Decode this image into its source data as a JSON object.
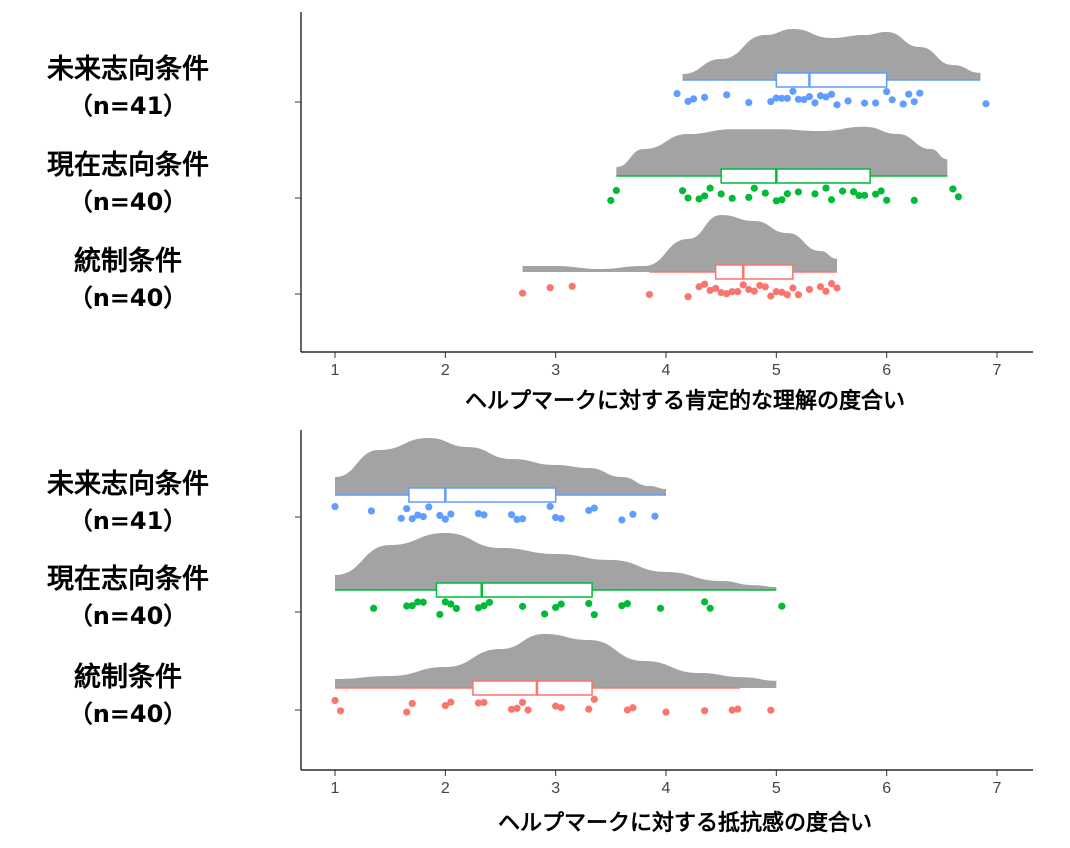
{
  "chart_data": [
    {
      "type": "raincloud",
      "xlabel": "ヘルプマークに対する肯定的な理解の度合い",
      "xlim": [
        0.7,
        7.3
      ],
      "xticks": [
        1,
        2,
        3,
        4,
        5,
        6,
        7
      ],
      "tick_labels": [
        "1",
        "2",
        "3",
        "4",
        "5",
        "6",
        "7"
      ],
      "groups": [
        {
          "label": "未来志向条件",
          "n_label": "（n=41）",
          "color": "#619CFF",
          "box": {
            "q1": 5.0,
            "median": 5.3,
            "q3": 6.0,
            "whisker_low": 4.15,
            "whisker_high": 6.85
          },
          "density": {
            "range": [
              4.15,
              6.85
            ],
            "x": [
              4.15,
              4.5,
              4.9,
              5.15,
              5.5,
              5.8,
              6.0,
              6.3,
              6.6,
              6.85
            ],
            "y": [
              0.1,
              0.35,
              0.75,
              0.85,
              0.7,
              0.75,
              0.8,
              0.55,
              0.25,
              0.12
            ]
          },
          "points": [
            4.1,
            4.2,
            4.25,
            4.35,
            4.55,
            4.75,
            4.95,
            5.0,
            5.05,
            5.1,
            5.15,
            5.2,
            5.25,
            5.3,
            5.35,
            5.4,
            5.45,
            5.5,
            5.55,
            5.65,
            5.8,
            5.9,
            6.0,
            6.05,
            6.15,
            6.2,
            6.25,
            6.3,
            6.9
          ]
        },
        {
          "label": "現在志向条件",
          "n_label": "（n=40）",
          "color": "#00BA38",
          "box": {
            "q1": 4.5,
            "median": 5.0,
            "q3": 5.85,
            "whisker_low": 3.55,
            "whisker_high": 6.55
          },
          "density": {
            "range": [
              3.55,
              6.55
            ],
            "x": [
              3.55,
              3.8,
              4.2,
              4.6,
              5.0,
              5.4,
              5.8,
              6.1,
              6.4,
              6.55
            ],
            "y": [
              0.15,
              0.45,
              0.7,
              0.78,
              0.78,
              0.75,
              0.82,
              0.7,
              0.45,
              0.28
            ]
          },
          "points": [
            3.5,
            3.55,
            4.15,
            4.2,
            4.3,
            4.35,
            4.4,
            4.5,
            4.6,
            4.75,
            4.8,
            4.9,
            5.0,
            5.05,
            5.1,
            5.2,
            5.35,
            5.45,
            5.5,
            5.6,
            5.7,
            5.75,
            5.8,
            5.9,
            5.95,
            6.0,
            6.25,
            6.6,
            6.65
          ]
        },
        {
          "label": "統制条件",
          "n_label": "（n=40）",
          "color": "#F8766D",
          "box": {
            "q1": 4.45,
            "median": 4.7,
            "q3": 5.15,
            "whisker_low": 3.85,
            "whisker_high": 5.55
          },
          "density": {
            "range": [
              2.7,
              5.55
            ],
            "x": [
              2.7,
              3.0,
              3.4,
              3.8,
              4.2,
              4.5,
              4.8,
              5.1,
              5.4,
              5.55
            ],
            "y": [
              0.1,
              0.1,
              0.05,
              0.1,
              0.55,
              0.95,
              0.85,
              0.65,
              0.35,
              0.22
            ]
          },
          "points": [
            2.7,
            2.95,
            3.15,
            3.85,
            4.2,
            4.3,
            4.35,
            4.4,
            4.45,
            4.5,
            4.55,
            4.6,
            4.65,
            4.7,
            4.75,
            4.8,
            4.85,
            4.9,
            4.95,
            5.0,
            5.05,
            5.1,
            5.15,
            5.2,
            5.3,
            5.4,
            5.45,
            5.5,
            5.55
          ]
        }
      ]
    },
    {
      "type": "raincloud",
      "xlabel": "ヘルプマークに対する抵抗感の度合い",
      "xlim": [
        0.7,
        7.3
      ],
      "xticks": [
        1,
        2,
        3,
        4,
        5,
        6,
        7
      ],
      "tick_labels": [
        "1",
        "2",
        "3",
        "4",
        "5",
        "6",
        "7"
      ],
      "groups": [
        {
          "label": "未来志向条件",
          "n_label": "（n=41）",
          "color": "#619CFF",
          "box": {
            "q1": 1.67,
            "median": 2.0,
            "q3": 3.0,
            "whisker_low": 1.0,
            "whisker_high": 4.0
          },
          "density": {
            "range": [
              1.0,
              4.0
            ],
            "x": [
              1.0,
              1.4,
              1.85,
              2.2,
              2.6,
              3.0,
              3.3,
              3.6,
              3.85,
              4.0
            ],
            "y": [
              0.3,
              0.75,
              0.95,
              0.8,
              0.6,
              0.5,
              0.45,
              0.3,
              0.15,
              0.1
            ]
          },
          "points": [
            1.0,
            1.33,
            1.6,
            1.65,
            1.7,
            1.75,
            1.8,
            1.85,
            1.95,
            2.0,
            2.05,
            2.3,
            2.35,
            2.6,
            2.65,
            2.7,
            2.95,
            3.0,
            3.05,
            3.3,
            3.35,
            3.6,
            3.7,
            3.9
          ]
        },
        {
          "label": "現在志向条件",
          "n_label": "（n=40）",
          "color": "#00BA38",
          "box": {
            "q1": 1.92,
            "median": 2.33,
            "q3": 3.33,
            "whisker_low": 1.0,
            "whisker_high": 5.0
          },
          "density": {
            "range": [
              1.0,
              5.0
            ],
            "x": [
              1.0,
              1.5,
              2.0,
              2.5,
              3.0,
              3.5,
              4.0,
              4.5,
              4.8,
              5.0
            ],
            "y": [
              0.25,
              0.75,
              0.95,
              0.7,
              0.6,
              0.5,
              0.3,
              0.15,
              0.08,
              0.05
            ]
          },
          "points": [
            1.35,
            1.65,
            1.7,
            1.75,
            1.8,
            1.95,
            2.0,
            2.05,
            2.1,
            2.3,
            2.35,
            2.4,
            2.7,
            2.9,
            3.0,
            3.05,
            3.3,
            3.35,
            3.6,
            3.65,
            3.95,
            4.35,
            4.4,
            5.05
          ]
        },
        {
          "label": "統制条件",
          "n_label": "（n=40）",
          "color": "#F8766D",
          "box": {
            "q1": 2.25,
            "median": 2.83,
            "q3": 3.33,
            "whisker_low": 1.0,
            "whisker_high": 4.67
          },
          "density": {
            "range": [
              1.0,
              5.0
            ],
            "x": [
              1.0,
              1.5,
              2.0,
              2.5,
              2.9,
              3.3,
              3.8,
              4.3,
              4.7,
              5.0
            ],
            "y": [
              0.15,
              0.2,
              0.35,
              0.65,
              0.9,
              0.8,
              0.45,
              0.25,
              0.18,
              0.12
            ]
          },
          "points": [
            1.0,
            1.05,
            1.65,
            1.7,
            2.0,
            2.05,
            2.3,
            2.35,
            2.6,
            2.65,
            2.7,
            2.75,
            3.0,
            3.05,
            3.3,
            3.35,
            3.65,
            3.7,
            4.0,
            4.35,
            4.6,
            4.65,
            4.95
          ]
        }
      ]
    }
  ]
}
